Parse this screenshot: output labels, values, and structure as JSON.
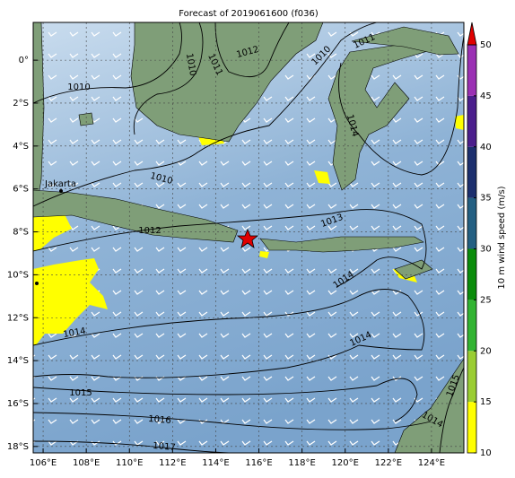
{
  "map": {
    "title": "Forecast of 2019061600 (f036)",
    "xlim": [
      105.54,
      125.5
    ],
    "ylim": [
      -18.3,
      1.76
    ],
    "xticks": [
      {
        "value": 106,
        "label": "106°E"
      },
      {
        "value": 108,
        "label": "108°E"
      },
      {
        "value": 110,
        "label": "110°E"
      },
      {
        "value": 112,
        "label": "112°E"
      },
      {
        "value": 114,
        "label": "114°E"
      },
      {
        "value": 116,
        "label": "116°E"
      },
      {
        "value": 118,
        "label": "118°E"
      },
      {
        "value": 120,
        "label": "120°E"
      },
      {
        "value": 122,
        "label": "122°E"
      },
      {
        "value": 124,
        "label": "124°E"
      }
    ],
    "yticks": [
      {
        "value": 0,
        "label": "0°"
      },
      {
        "value": -2,
        "label": "2°S"
      },
      {
        "value": -4,
        "label": "4°S"
      },
      {
        "value": -6,
        "label": "6°S"
      },
      {
        "value": -8,
        "label": "8°S"
      },
      {
        "value": -10,
        "label": "10°S"
      },
      {
        "value": -12,
        "label": "12°S"
      },
      {
        "value": -14,
        "label": "14°S"
      },
      {
        "value": -16,
        "label": "16°S"
      },
      {
        "value": -18,
        "label": "18°S"
      }
    ],
    "grid": true,
    "place": "Jakarta",
    "contour_labels": [
      1010,
      1010,
      1011,
      1012,
      1010,
      1011,
      1014,
      1010,
      1012,
      1013,
      1014,
      1014,
      1014,
      1015,
      1016,
      1017,
      1015,
      1014
    ]
  },
  "colorbar": {
    "label": "10 m wind speed (m/s)",
    "ticks": [
      10,
      15,
      20,
      25,
      30,
      35,
      40,
      45,
      50
    ],
    "colors": [
      "#ffff00",
      "#9acd32",
      "#32b432",
      "#0a8c0a",
      "#235f82",
      "#1c2f6e",
      "#4b1e8c",
      "#9b30b4"
    ],
    "extend_color": "#e00000"
  }
}
